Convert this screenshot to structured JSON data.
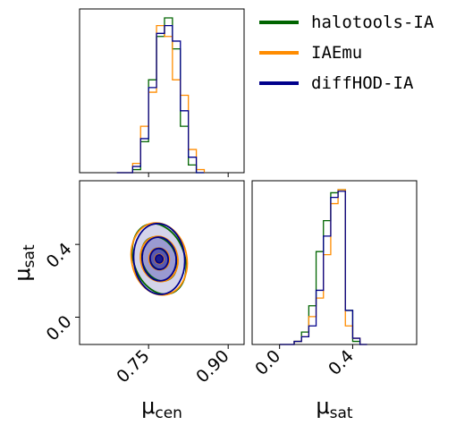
{
  "chart_data": {
    "type": "corner",
    "parameters": [
      {
        "id": "mu_cen",
        "symbol": "μ",
        "subscript": "cen",
        "range": [
          0.62,
          0.93
        ],
        "ticks": [
          0.75,
          0.9
        ],
        "tick_labels": [
          "0.75",
          "0.90"
        ]
      },
      {
        "id": "mu_sat",
        "symbol": "μ",
        "subscript": "sat",
        "range": [
          -0.15,
          0.75
        ],
        "ticks": [
          0.0,
          0.4
        ],
        "tick_labels": [
          "0.0",
          "0.4"
        ]
      }
    ],
    "series": [
      {
        "name": "halotools-IA",
        "color": "#006400"
      },
      {
        "name": "IAEmu",
        "color": "#ff8c00"
      },
      {
        "name": "diffHOD-IA",
        "color": "#00008b"
      }
    ],
    "hist_mu_cen": {
      "bin_edges": [
        0.69,
        0.705,
        0.72,
        0.735,
        0.75,
        0.765,
        0.78,
        0.795,
        0.81,
        0.825,
        0.84,
        0.855
      ],
      "counts": [
        [
          0,
          0,
          2,
          20,
          60,
          88,
          100,
          80,
          30,
          5,
          0
        ],
        [
          0,
          0,
          6,
          30,
          52,
          95,
          88,
          60,
          50,
          15,
          2
        ],
        [
          0,
          0,
          4,
          22,
          55,
          90,
          95,
          85,
          40,
          10,
          0
        ]
      ]
    },
    "hist_mu_sat": {
      "bin_edges": [
        0.0,
        0.04,
        0.08,
        0.12,
        0.16,
        0.2,
        0.24,
        0.28,
        0.32,
        0.36,
        0.4,
        0.44,
        0.48
      ],
      "counts": [
        [
          0,
          0,
          2,
          8,
          25,
          60,
          80,
          98,
          100,
          22,
          2,
          0
        ],
        [
          0,
          0,
          2,
          5,
          18,
          30,
          58,
          91,
          100,
          12,
          4,
          0
        ],
        [
          0,
          0,
          2,
          5,
          12,
          35,
          70,
          95,
          99,
          22,
          4,
          0
        ]
      ]
    },
    "contour_center": {
      "mu_cen": 0.77,
      "mu_sat": 0.32
    },
    "contours": [
      {
        "series": "halotools-IA",
        "levels": [
          {
            "dx": 0.048,
            "dy": 0.2,
            "rot": -20
          },
          {
            "dx": 0.032,
            "dy": 0.125,
            "rot": -22
          },
          {
            "dx": 0.017,
            "dy": 0.06,
            "rot": -25
          },
          {
            "dx": 0.007,
            "dy": 0.025,
            "rot": -30
          }
        ]
      },
      {
        "series": "IAEmu",
        "levels": [
          {
            "dx": 0.052,
            "dy": 0.2,
            "rot": -12
          },
          {
            "dx": 0.035,
            "dy": 0.125,
            "rot": -12
          },
          {
            "dx": 0.019,
            "dy": 0.06,
            "rot": -15
          },
          {
            "dx": 0.008,
            "dy": 0.025,
            "rot": -15
          }
        ]
      },
      {
        "series": "diffHOD-IA",
        "levels": [
          {
            "dx": 0.048,
            "dy": 0.195,
            "rot": -5
          },
          {
            "dx": 0.032,
            "dy": 0.12,
            "rot": -5
          },
          {
            "dx": 0.017,
            "dy": 0.058,
            "rot": -8
          },
          {
            "dx": 0.007,
            "dy": 0.022,
            "rot": -8
          }
        ]
      }
    ],
    "fill_colors": [
      "#d4d4ea",
      "#9a9ad1",
      "#5858b0",
      "#1a1a8c"
    ]
  }
}
